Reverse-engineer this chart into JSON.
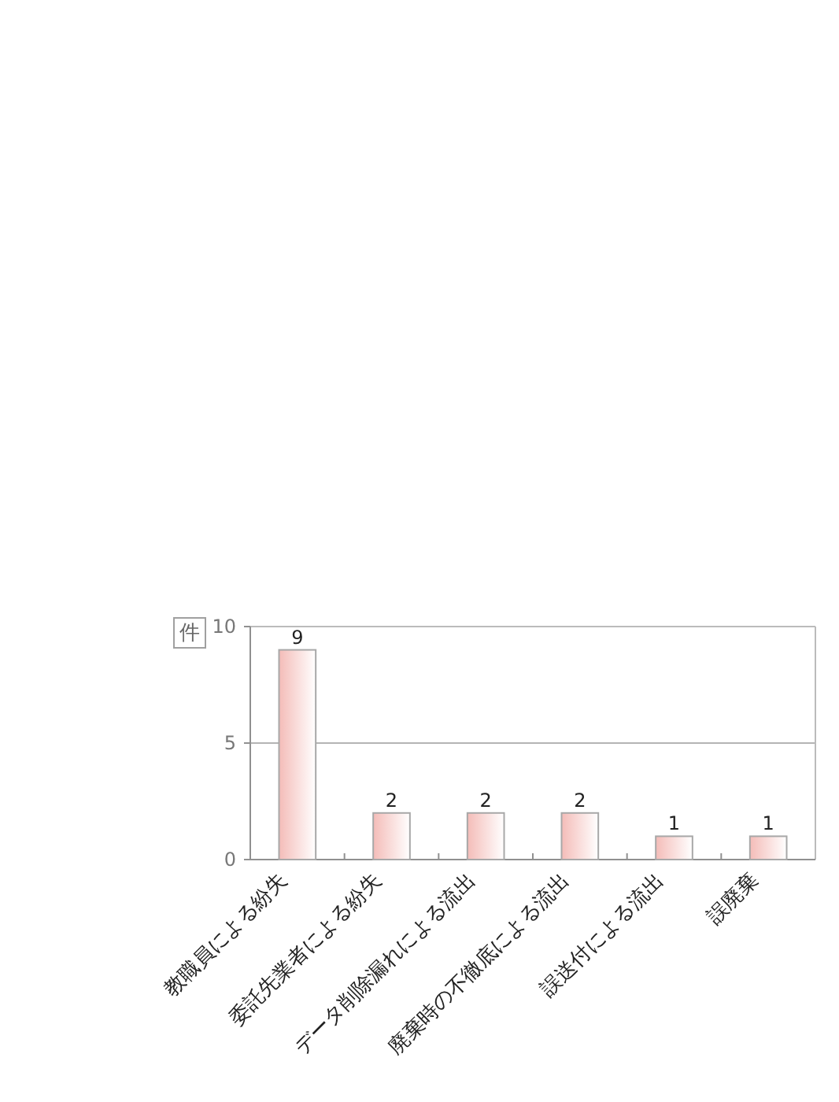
{
  "chart_data": {
    "type": "bar",
    "ylabel": "件",
    "categories": [
      "教職員による紛失",
      "委託先業者による紛失",
      "データ削除漏れによる流出",
      "廃棄時の不徹底による流出",
      "誤送付による流出",
      "誤廃棄"
    ],
    "values": [
      9,
      2,
      2,
      2,
      1,
      1
    ],
    "color": "#f4bcb8",
    "ylim": [
      0,
      10
    ],
    "yticks": [
      0,
      5,
      10
    ],
    "grid": "y",
    "data_labels": true
  }
}
